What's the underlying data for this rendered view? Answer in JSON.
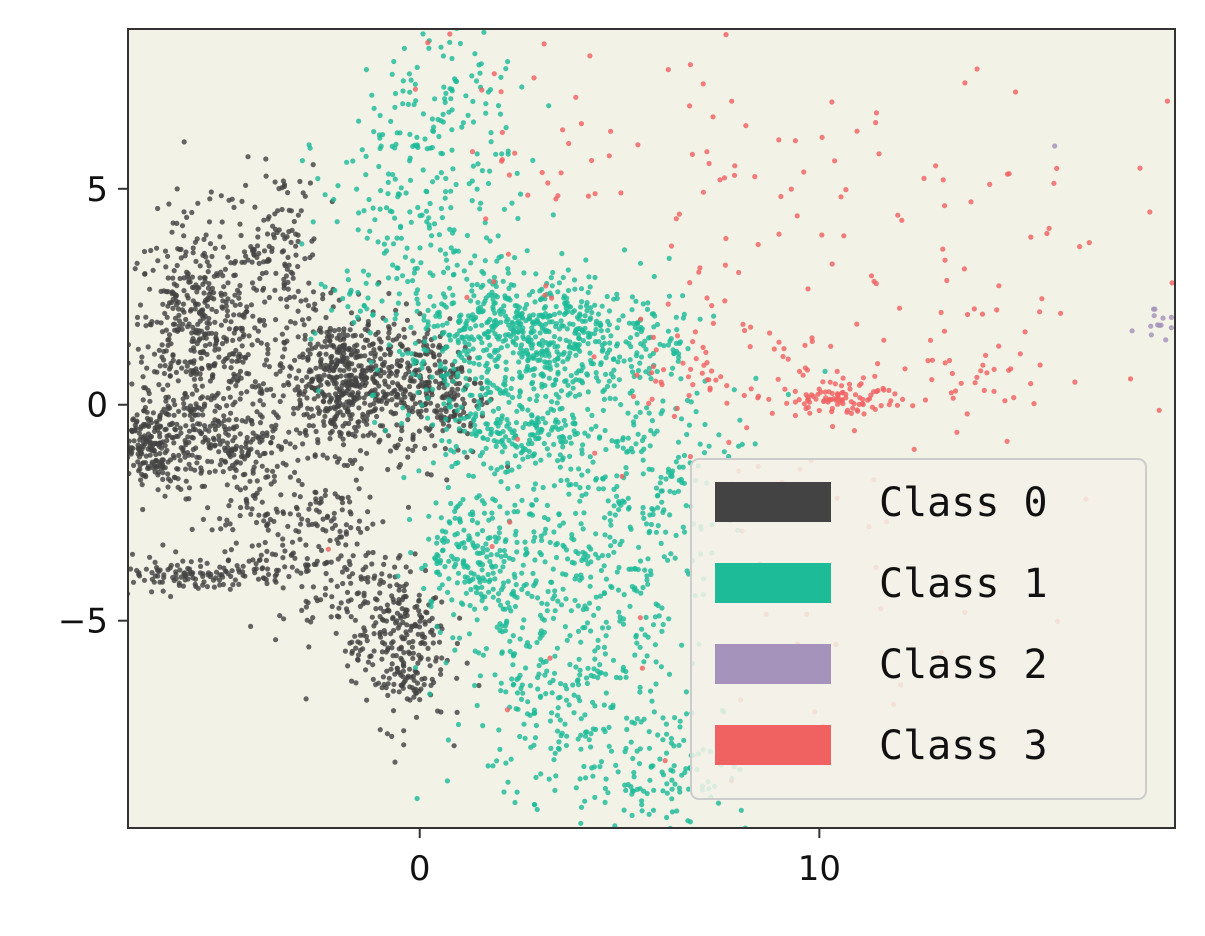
{
  "chart_data": {
    "type": "scatter",
    "title": "",
    "xlabel": "",
    "ylabel": "",
    "xlim": [
      -7.3,
      18.9
    ],
    "ylim": [
      -9.8,
      8.7
    ],
    "xticks": [
      0,
      10
    ],
    "yticks": [
      -5,
      0,
      5
    ],
    "xtick_labels": [
      "0",
      "10"
    ],
    "ytick_labels": [
      "−5",
      "0",
      "5"
    ],
    "plot_background": "#f3f2e7",
    "grid": false,
    "legend_position": "lower-right",
    "series": [
      {
        "name": "Class 0",
        "color": "#434343",
        "clusters": [
          {
            "center": [
              -5.5,
              1.5
            ],
            "spread": [
              0.9,
              1.4
            ],
            "n": 550
          },
          {
            "center": [
              -6.8,
              -1.0
            ],
            "spread": [
              0.7,
              0.5
            ],
            "n": 250
          },
          {
            "center": [
              -4.5,
              -1.0
            ],
            "spread": [
              0.6,
              0.6
            ],
            "n": 120
          },
          {
            "center": [
              -3.5,
              3.5
            ],
            "spread": [
              0.5,
              1.0
            ],
            "n": 120
          },
          {
            "center": [
              -1.8,
              0.5
            ],
            "spread": [
              0.9,
              0.8
            ],
            "n": 600
          },
          {
            "center": [
              0.5,
              0.3
            ],
            "spread": [
              0.6,
              0.8
            ],
            "n": 200
          },
          {
            "center": [
              -5.5,
              -3.9
            ],
            "spread": [
              1.2,
              0.2
            ],
            "n": 130
          },
          {
            "center": [
              -2.0,
              -3.8
            ],
            "spread": [
              0.8,
              1.0
            ],
            "n": 150
          },
          {
            "center": [
              -0.5,
              -5.6
            ],
            "spread": [
              0.6,
              0.9
            ],
            "n": 250
          },
          {
            "center": [
              -3.5,
              -2.5
            ],
            "spread": [
              1.0,
              0.8
            ],
            "n": 120
          }
        ]
      },
      {
        "name": "Class 1",
        "color": "#1dbb98",
        "clusters": [
          {
            "center": [
              2.5,
              1.6
            ],
            "spread": [
              1.3,
              0.7
            ],
            "n": 500
          },
          {
            "center": [
              2.5,
              -0.5
            ],
            "spread": [
              1.2,
              0.6
            ],
            "n": 250
          },
          {
            "center": [
              5.0,
              1.5
            ],
            "spread": [
              1.2,
              0.8
            ],
            "n": 150
          },
          {
            "center": [
              0.0,
              3.5
            ],
            "spread": [
              1.3,
              1.8
            ],
            "n": 250
          },
          {
            "center": [
              1.5,
              -3.5
            ],
            "spread": [
              0.8,
              0.7
            ],
            "n": 200
          },
          {
            "center": [
              4.0,
              -4.0
            ],
            "spread": [
              1.5,
              1.5
            ],
            "n": 300
          },
          {
            "center": [
              3.5,
              -7.0
            ],
            "spread": [
              1.5,
              1.2
            ],
            "n": 200
          },
          {
            "center": [
              6.0,
              -8.5
            ],
            "spread": [
              1.2,
              0.8
            ],
            "n": 120
          },
          {
            "center": [
              6.0,
              -1.5
            ],
            "spread": [
              1.3,
              1.0
            ],
            "n": 150
          },
          {
            "center": [
              0.5,
              7.0
            ],
            "spread": [
              1.0,
              1.0
            ],
            "n": 100
          }
        ]
      },
      {
        "name": "Class 2",
        "color": "#a593bb",
        "clusters": [
          {
            "center": [
              18.5,
              1.8
            ],
            "spread": [
              0.3,
              0.2
            ],
            "n": 14
          },
          {
            "center": [
              15.9,
              6.0
            ],
            "spread": [
              0.05,
              0.05
            ],
            "n": 1
          }
        ]
      },
      {
        "name": "Class 3",
        "color": "#f06262",
        "clusters": [
          {
            "center": [
              10.5,
              0.1
            ],
            "spread": [
              0.8,
              0.15
            ],
            "n": 80
          },
          {
            "center": [
              12.5,
              0.5
            ],
            "spread": [
              2.5,
              0.5
            ],
            "n": 60
          },
          {
            "center": [
              11.0,
              3.5
            ],
            "spread": [
              4.0,
              2.5
            ],
            "n": 110
          },
          {
            "center": [
              4.0,
              5.5
            ],
            "spread": [
              2.5,
              2.0
            ],
            "n": 50
          },
          {
            "center": [
              10.0,
              -4.0
            ],
            "spread": [
              4.0,
              2.5
            ],
            "n": 40
          },
          {
            "center": [
              7.5,
              1.0
            ],
            "spread": [
              1.2,
              0.8
            ],
            "n": 50
          }
        ]
      }
    ]
  }
}
